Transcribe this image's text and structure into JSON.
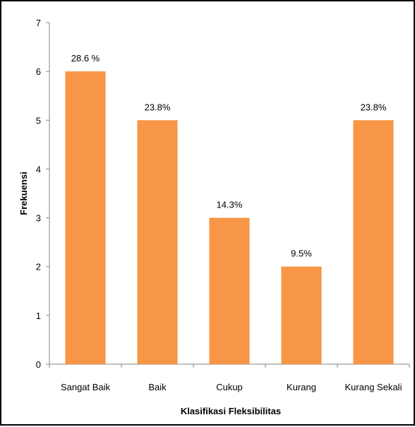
{
  "chart_data": {
    "type": "bar",
    "categories": [
      "Sangat Baik",
      "Baik",
      "Cukup",
      "Kurang",
      "Kurang Sekali"
    ],
    "values": [
      6,
      5,
      3,
      2,
      5
    ],
    "data_labels": [
      "28.6 %",
      "23.8%",
      "14.3%",
      "9.5%",
      "23.8%"
    ],
    "xlabel": "Klasifikasi Fleksibilitas",
    "ylabel": "Frekuensi",
    "ylim": [
      0,
      7
    ],
    "yticks": [
      0,
      1,
      2,
      3,
      4,
      5,
      6,
      7
    ],
    "grid": false,
    "legend": "none",
    "bar_color": "#F79646",
    "axis_color": "#868686"
  }
}
